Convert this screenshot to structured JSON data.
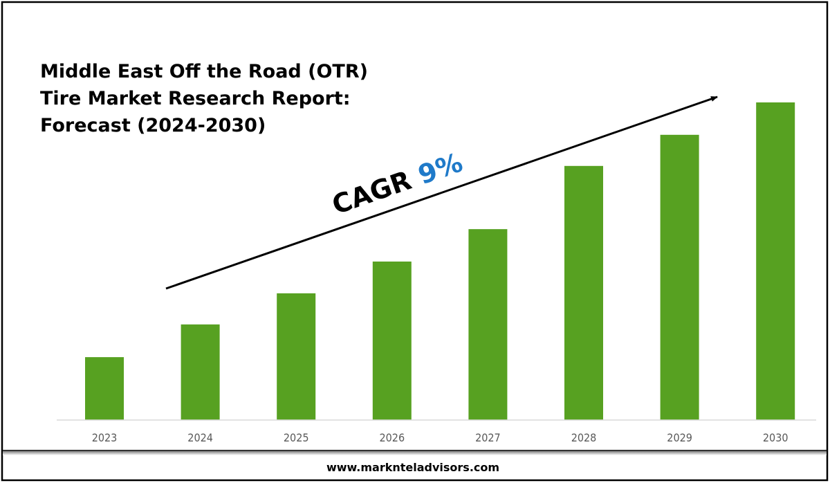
{
  "chart_data": {
    "type": "bar",
    "title": [
      "Middle East Off the Road (OTR)",
      "Tire Market Research Report:",
      "Forecast (2024-2030)"
    ],
    "categories": [
      "2023",
      "2024",
      "2025",
      "2026",
      "2027",
      "2028",
      "2029",
      "2030"
    ],
    "values": [
      19.8,
      30.1,
      39.9,
      49.9,
      60.1,
      80.0,
      89.8,
      100
    ],
    "value_note_scale": "relative (2030 = 100); no y-axis shown",
    "ylim": [
      0,
      100
    ],
    "grid": false,
    "bar_color": "#57a121",
    "annotation": {
      "label": "CAGR",
      "value": "9%",
      "value_color": "#1f7ac9"
    },
    "xlabel": "",
    "ylabel": ""
  },
  "footer": {
    "website": "www.marknteladvisors.com"
  }
}
